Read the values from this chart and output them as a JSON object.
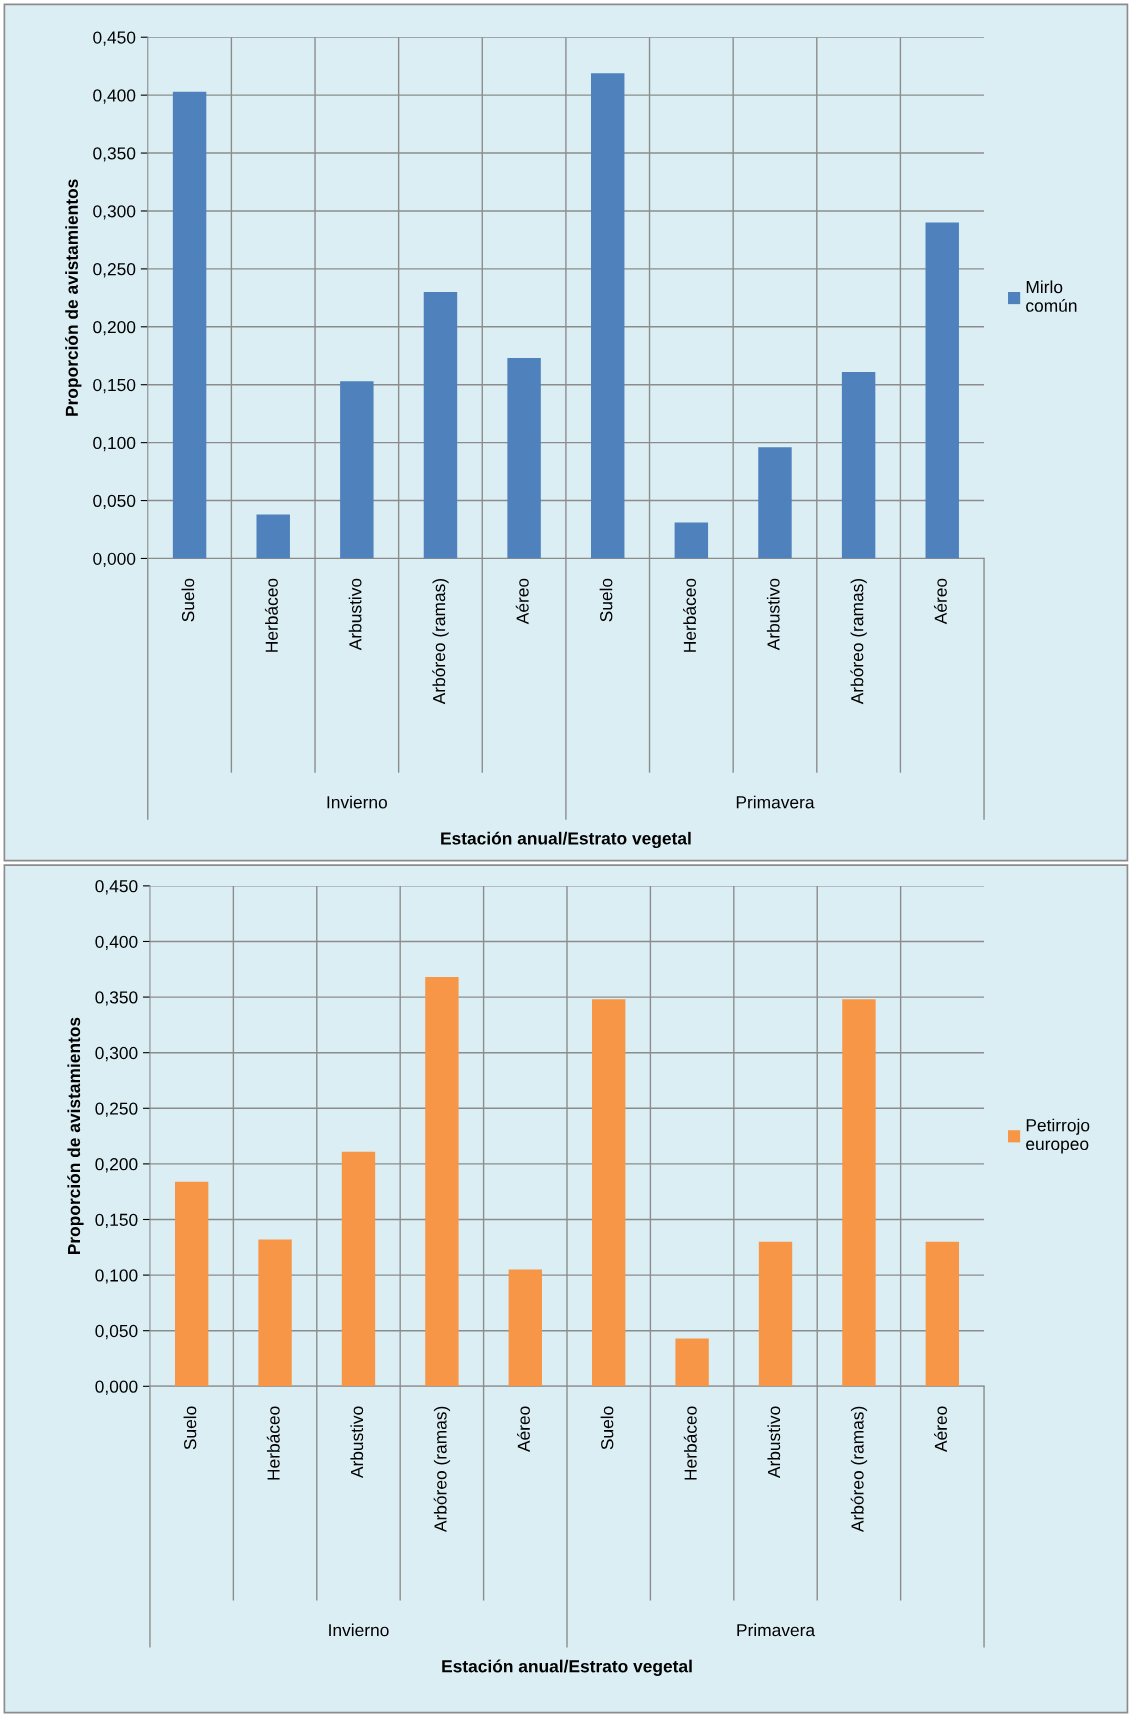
{
  "chart_data": [
    {
      "type": "bar",
      "xlabel": "Estación anual/Estrato vegetal",
      "ylabel": "Proporción de avistamientos",
      "categories": [
        "Suelo",
        "Herbáceo",
        "Arbustivo",
        "Arbóreo (ramas)",
        "Aéreo",
        "Suelo",
        "Herbáceo",
        "Arbustivo",
        "Arbóreo (ramas)",
        "Aéreo"
      ],
      "series": [
        {
          "name": "Mirlo común",
          "color": "#4f81bd",
          "values": [
            0.403,
            0.038,
            0.153,
            0.23,
            0.173,
            0.419,
            0.031,
            0.096,
            0.161,
            0.29
          ]
        }
      ],
      "annotations": [
        "Invierno",
        "Primavera"
      ],
      "ylim": [
        0,
        0.45
      ],
      "yticks": [
        {
          "value": 0,
          "label": "0,000"
        },
        {
          "value": 0.05,
          "label": "0,050"
        },
        {
          "value": 0.1,
          "label": "0,100"
        },
        {
          "value": 0.15,
          "label": "0,150"
        },
        {
          "value": 0.2,
          "label": "0,200"
        },
        {
          "value": 0.25,
          "label": "0,250"
        },
        {
          "value": 0.3,
          "label": "0,300"
        },
        {
          "value": 0.35,
          "label": "0,350"
        },
        {
          "value": 0.4,
          "label": "0,400"
        },
        {
          "value": 0.45,
          "label": "0,450"
        }
      ],
      "grid": true,
      "legend": "right"
    },
    {
      "type": "bar",
      "xlabel": "Estación anual/Estrato vegetal",
      "ylabel": "Proporción de avistamientos",
      "categories": [
        "Suelo",
        "Herbáceo",
        "Arbustivo",
        "Arbóreo (ramas)",
        "Aéreo",
        "Suelo",
        "Herbáceo",
        "Arbustivo",
        "Arbóreo (ramas)",
        "Aéreo"
      ],
      "series": [
        {
          "name": "Petirrojo europeo",
          "color": "#f79646",
          "values": [
            0.184,
            0.132,
            0.211,
            0.368,
            0.105,
            0.348,
            0.043,
            0.13,
            0.348,
            0.13
          ]
        }
      ],
      "annotations": [
        "Invierno",
        "Primavera"
      ],
      "ylim": [
        0,
        0.45
      ],
      "yticks": [
        {
          "value": 0,
          "label": "0,000"
        },
        {
          "value": 0.05,
          "label": "0,050"
        },
        {
          "value": 0.1,
          "label": "0,100"
        },
        {
          "value": 0.15,
          "label": "0,150"
        },
        {
          "value": 0.2,
          "label": "0,200"
        },
        {
          "value": 0.25,
          "label": "0,250"
        },
        {
          "value": 0.3,
          "label": "0,300"
        },
        {
          "value": 0.35,
          "label": "0,350"
        },
        {
          "value": 0.4,
          "label": "0,400"
        },
        {
          "value": 0.45,
          "label": "0,450"
        }
      ],
      "grid": true,
      "legend": "right"
    }
  ]
}
